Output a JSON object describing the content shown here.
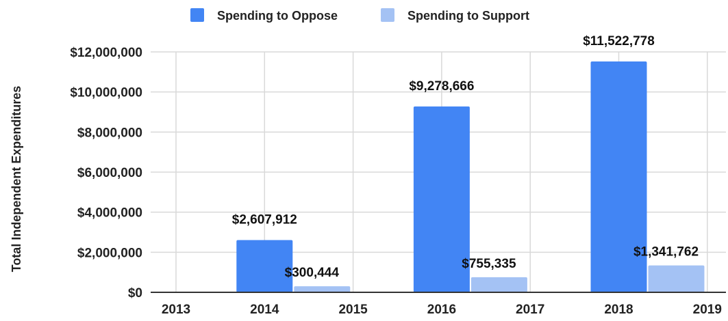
{
  "chart_data": {
    "type": "bar",
    "title": "",
    "xlabel": "",
    "ylabel": "Total Independent Expenditures",
    "x_ticks": [
      "2013",
      "2014",
      "2015",
      "2016",
      "2017",
      "2018",
      "2019"
    ],
    "ylim": [
      0,
      12000000
    ],
    "y_ticks": [
      0,
      2000000,
      4000000,
      6000000,
      8000000,
      10000000,
      12000000
    ],
    "y_tick_labels": [
      "$0",
      "$2,000,000",
      "$4,000,000",
      "$6,000,000",
      "$8,000,000",
      "$10,000,000",
      "$12,000,000"
    ],
    "grid": true,
    "legend_position": "top",
    "categories": [
      "2014",
      "2016",
      "2018"
    ],
    "series": [
      {
        "name": "Spending to Oppose",
        "color": "#4285f4",
        "values": [
          2607912,
          9278666,
          11522778
        ],
        "labels": [
          "$2,607,912",
          "$9,278,666",
          "$11,522,778"
        ]
      },
      {
        "name": "Spending to Support",
        "color": "#a4c2f4",
        "values": [
          300444,
          755335,
          1341762
        ],
        "labels": [
          "$300,444",
          "$755,335",
          "$1,341,762"
        ]
      }
    ]
  }
}
